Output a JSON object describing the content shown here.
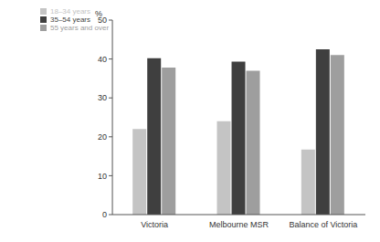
{
  "chart_data": {
    "type": "bar",
    "y_label": "%",
    "categories": [
      "Victoria",
      "Melbourne MSR",
      "Balance of Victoria"
    ],
    "series": [
      {
        "name": "18–34 years",
        "color": "#c4c4c4",
        "values": [
          22,
          24,
          16.7
        ]
      },
      {
        "name": "35–54 years",
        "color": "#3f3f3f",
        "values": [
          40.2,
          39.3,
          42.5
        ]
      },
      {
        "name": "55 years and over",
        "color": "#9e9e9e",
        "values": [
          37.8,
          37,
          41
        ]
      }
    ],
    "ylim": [
      0,
      50
    ],
    "yticks": [
      0,
      10,
      20,
      30,
      40,
      50
    ],
    "grid": false,
    "legend": "top-left"
  }
}
